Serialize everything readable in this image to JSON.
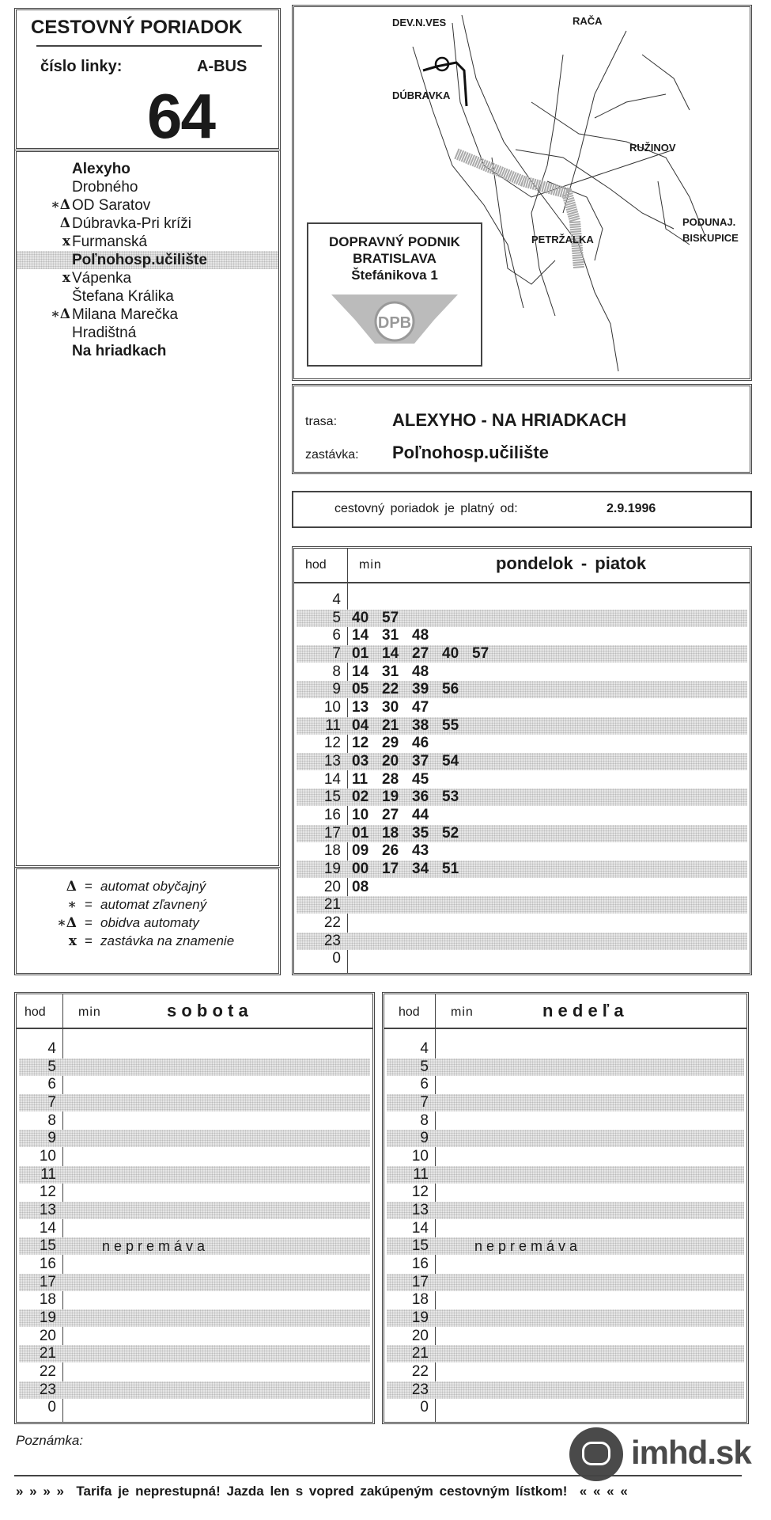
{
  "header": {
    "title": "CESTOVNÝ PORIADOK",
    "line_label": "číslo linky:",
    "line_type": "A-BUS",
    "line_number": "64"
  },
  "stops": [
    {
      "symbol": "",
      "name": "Alexyho",
      "bold": true
    },
    {
      "symbol": "",
      "name": "Drobného"
    },
    {
      "symbol": "∗Δ",
      "name": "OD Saratov"
    },
    {
      "symbol": "Δ",
      "name": "Dúbravka-Pri kríži"
    },
    {
      "symbol": "x",
      "name": "Furmanská"
    },
    {
      "symbol": "",
      "name": "Poľnohosp.učilište",
      "bold": true,
      "current": true
    },
    {
      "symbol": "x",
      "name": "Vápenka"
    },
    {
      "symbol": "",
      "name": "Štefana Králika"
    },
    {
      "symbol": "∗Δ",
      "name": "Milana Marečka"
    },
    {
      "symbol": "",
      "name": "Hradištná"
    },
    {
      "symbol": "",
      "name": "Na hriadkach",
      "bold": true
    }
  ],
  "legend": [
    {
      "symbol": "Δ",
      "text": "automat obyčajný"
    },
    {
      "symbol": "∗",
      "text": "automat zľavnený"
    },
    {
      "symbol": "∗Δ",
      "text": "obidva automaty"
    },
    {
      "symbol": "x",
      "text": "zastávka na znamenie"
    }
  ],
  "legend_eq": "=",
  "map": {
    "labels": [
      "DEV.N.VES",
      "RAČA",
      "DÚBRAVKA",
      "RUŽINOV",
      "PODUNAJ.",
      "BISKUPICE",
      "PETRŽALKA"
    ],
    "company": {
      "line1": "DOPRAVNÝ PODNIK",
      "line2": "BRATISLAVA",
      "line3": "Štefánikova 1",
      "logo": "DPB"
    }
  },
  "route": {
    "trasa_label": "trasa:",
    "trasa": "ALEXYHO - NA HRIADKACH",
    "stop_label": "zastávka:",
    "stop": "Poľnohosp.učilište"
  },
  "validity": {
    "label": "cestovný poriadok je platný od:",
    "date": "2.9.1996"
  },
  "weekday": {
    "hod": "hod",
    "min": "min",
    "title": "pondelok - piatok",
    "rows": [
      {
        "hour": "4",
        "minutes": []
      },
      {
        "hour": "5",
        "minutes": [
          "40",
          "57"
        ]
      },
      {
        "hour": "6",
        "minutes": [
          "14",
          "31",
          "48"
        ]
      },
      {
        "hour": "7",
        "minutes": [
          "01",
          "14",
          "27",
          "40",
          "57"
        ]
      },
      {
        "hour": "8",
        "minutes": [
          "14",
          "31",
          "48"
        ]
      },
      {
        "hour": "9",
        "minutes": [
          "05",
          "22",
          "39",
          "56"
        ]
      },
      {
        "hour": "10",
        "minutes": [
          "13",
          "30",
          "47"
        ]
      },
      {
        "hour": "11",
        "minutes": [
          "04",
          "21",
          "38",
          "55"
        ]
      },
      {
        "hour": "12",
        "minutes": [
          "12",
          "29",
          "46"
        ]
      },
      {
        "hour": "13",
        "minutes": [
          "03",
          "20",
          "37",
          "54"
        ]
      },
      {
        "hour": "14",
        "minutes": [
          "11",
          "28",
          "45"
        ]
      },
      {
        "hour": "15",
        "minutes": [
          "02",
          "19",
          "36",
          "53"
        ]
      },
      {
        "hour": "16",
        "minutes": [
          "10",
          "27",
          "44"
        ]
      },
      {
        "hour": "17",
        "minutes": [
          "01",
          "18",
          "35",
          "52"
        ]
      },
      {
        "hour": "18",
        "minutes": [
          "09",
          "26",
          "43"
        ]
      },
      {
        "hour": "19",
        "minutes": [
          "00",
          "17",
          "34",
          "51"
        ]
      },
      {
        "hour": "20",
        "minutes": [
          "08"
        ]
      },
      {
        "hour": "21",
        "minutes": []
      },
      {
        "hour": "22",
        "minutes": []
      },
      {
        "hour": "23",
        "minutes": []
      },
      {
        "hour": "0",
        "minutes": []
      }
    ]
  },
  "saturday": {
    "hod": "hod",
    "min": "min",
    "title": "s o b o t a",
    "note": "n e p r e m á v a"
  },
  "sunday": {
    "hod": "hod",
    "min": "min",
    "title": "n e d e ľ a",
    "note": "n e p r e m á v a"
  },
  "hours": [
    "4",
    "5",
    "6",
    "7",
    "8",
    "9",
    "10",
    "11",
    "12",
    "13",
    "14",
    "15",
    "16",
    "17",
    "18",
    "19",
    "20",
    "21",
    "22",
    "23",
    "0"
  ],
  "footer": {
    "note_label": "Poznámka:",
    "notice": "» » » »  Tarifa je neprestupná! Jazda len s vopred zakúpeným cestovným lístkom!  « « « «",
    "brand": "imhd.sk",
    "brand_color": "#4a4a4a"
  }
}
